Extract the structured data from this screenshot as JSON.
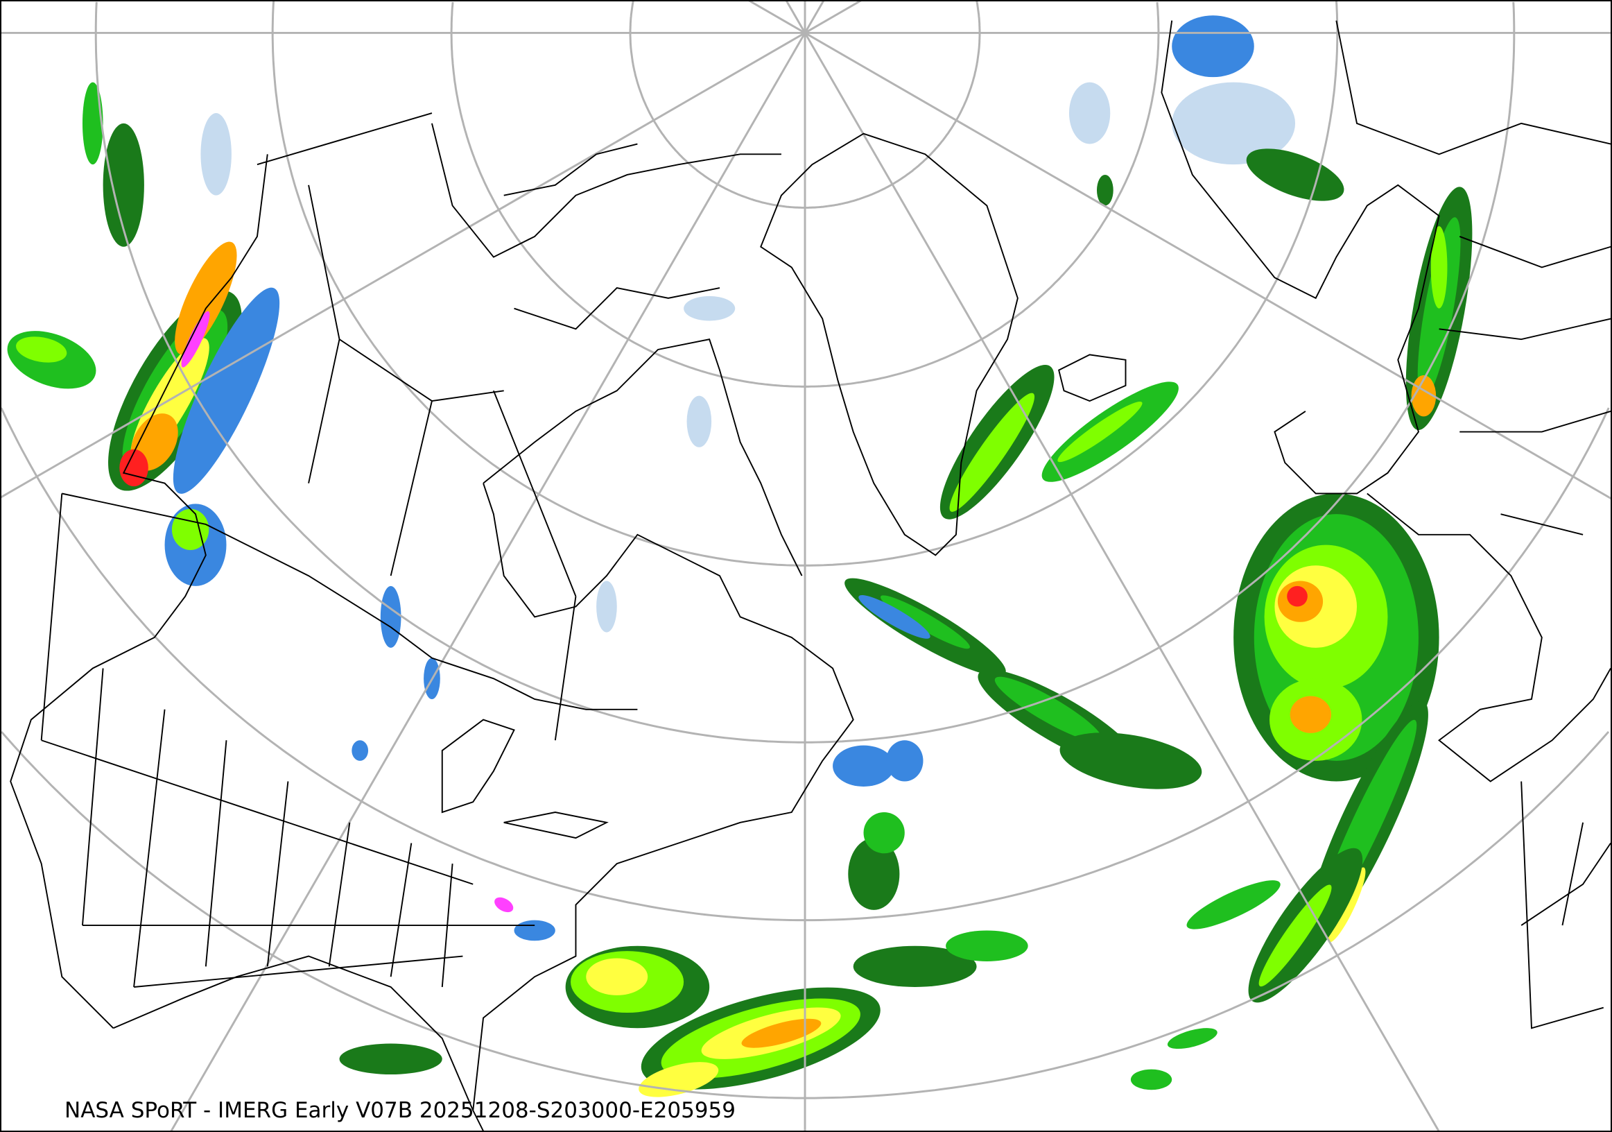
{
  "caption": "NASA SPoRT - IMERG Early V07B 20251208-S203000-E205959",
  "map": {
    "projection": "polar stereographic, North Pole",
    "graticule_color": "#b3b3b3",
    "coastline_color": "#000000",
    "precip_colors": {
      "light_blue": "#c6dbef",
      "blue": "#3a87e0",
      "dark_green": "#1a7a1a",
      "green": "#1fbf1f",
      "light_green": "#7fff00",
      "yellow": "#ffff40",
      "orange": "#ffa500",
      "red": "#ff2020",
      "magenta": "#ff40ff"
    }
  }
}
